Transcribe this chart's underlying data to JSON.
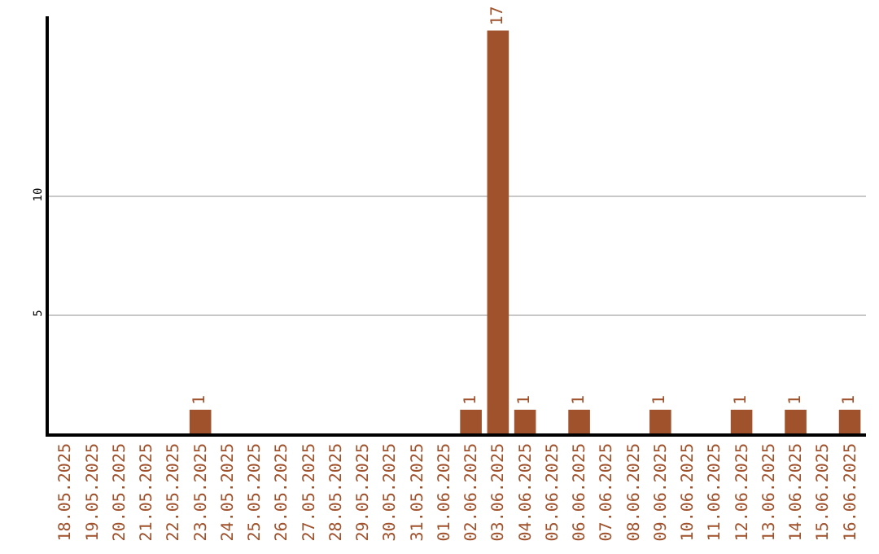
{
  "chart_data": {
    "type": "bar",
    "categories": [
      "18.05.2025",
      "19.05.2025",
      "20.05.2025",
      "21.05.2025",
      "22.05.2025",
      "23.05.2025",
      "24.05.2025",
      "25.05.2025",
      "26.05.2025",
      "27.05.2025",
      "28.05.2025",
      "29.05.2025",
      "30.05.2025",
      "31.05.2025",
      "01.06.2025",
      "02.06.2025",
      "03.06.2025",
      "04.06.2025",
      "05.06.2025",
      "06.06.2025",
      "07.06.2025",
      "08.06.2025",
      "09.06.2025",
      "10.06.2025",
      "11.06.2025",
      "12.06.2025",
      "13.06.2025",
      "14.06.2025",
      "15.06.2025",
      "16.06.2025"
    ],
    "values": [
      0,
      0,
      0,
      0,
      0,
      1,
      0,
      0,
      0,
      0,
      0,
      0,
      0,
      0,
      0,
      1,
      17,
      1,
      0,
      1,
      0,
      0,
      1,
      0,
      0,
      1,
      0,
      1,
      0,
      1
    ],
    "value_labels": [
      null,
      null,
      null,
      null,
      null,
      "1",
      null,
      null,
      null,
      null,
      null,
      null,
      null,
      null,
      null,
      "1",
      "17",
      "1",
      null,
      "1",
      null,
      null,
      "1",
      null,
      null,
      "1",
      null,
      "1",
      null,
      "1"
    ],
    "color": "#a0522d",
    "ylim": [
      0,
      17.6
    ],
    "yticks": [
      5,
      10
    ],
    "grid": "y",
    "legend": false
  }
}
